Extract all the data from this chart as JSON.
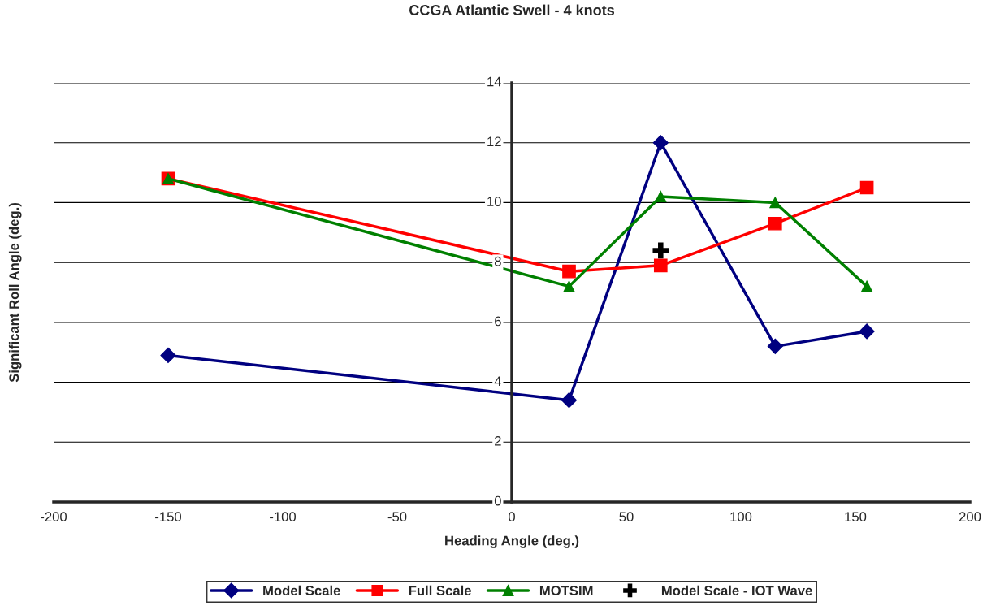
{
  "chart_data": {
    "type": "line",
    "title": "CCGA Atlantic Swell - 4 knots",
    "xlabel": "Heading Angle (deg.)",
    "ylabel": "Significant Roll Angle (deg.)",
    "xlim": [
      -200,
      200
    ],
    "xticks": [
      -200,
      -150,
      -100,
      -50,
      0,
      50,
      100,
      150,
      200
    ],
    "ylim": [
      0,
      14
    ],
    "yticks": [
      0,
      2,
      4,
      6,
      8,
      10,
      12,
      14
    ],
    "grid": "y",
    "legend": "bottom",
    "line_style": "solid",
    "series": [
      {
        "name": "Model Scale",
        "color": "#000080",
        "marker": "diamond",
        "x": [
          -150,
          25,
          65,
          115,
          155
        ],
        "values": [
          4.9,
          3.4,
          12.0,
          5.2,
          5.7
        ]
      },
      {
        "name": "Full Scale",
        "color": "#ff0000",
        "marker": "square",
        "x": [
          -150,
          25,
          65,
          115,
          155
        ],
        "values": [
          10.8,
          7.7,
          7.9,
          9.3,
          10.5
        ]
      },
      {
        "name": "MOTSIM",
        "color": "#008000",
        "marker": "triangle",
        "x": [
          -150,
          25,
          65,
          115,
          155
        ],
        "values": [
          10.8,
          7.2,
          10.2,
          10.0,
          7.2
        ]
      },
      {
        "name": "Model Scale - IOT Wave",
        "color": "#000000",
        "type": "scatter",
        "marker": "cross",
        "x": [
          65
        ],
        "values": [
          8.4
        ]
      }
    ]
  }
}
